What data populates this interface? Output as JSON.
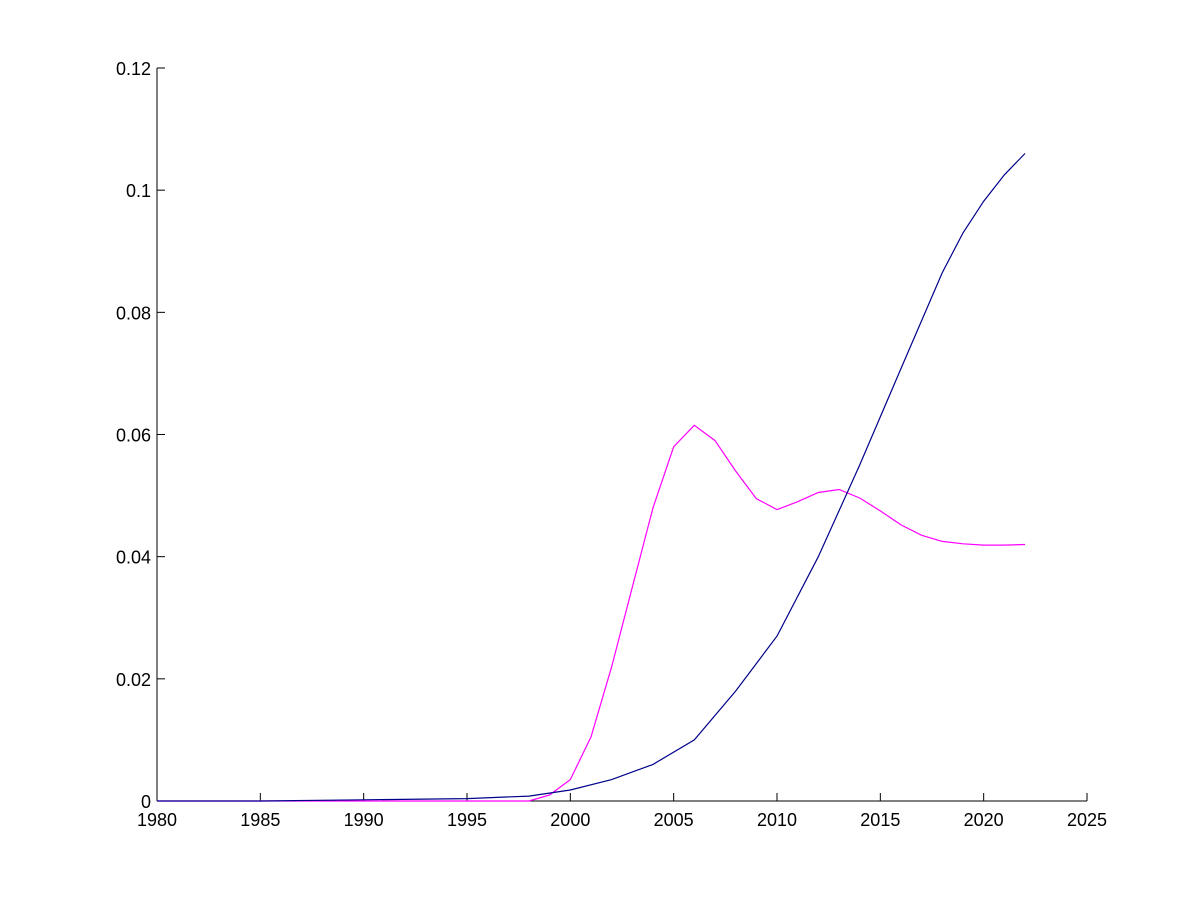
{
  "chart_data": {
    "type": "line",
    "title": "",
    "xlabel": "",
    "ylabel": "",
    "xlim": [
      1980,
      2025
    ],
    "ylim": [
      0,
      0.12
    ],
    "grid": false,
    "x_ticks": [
      1980,
      1985,
      1990,
      1995,
      2000,
      2005,
      2010,
      2015,
      2020,
      2025
    ],
    "y_ticks": [
      0,
      0.02,
      0.04,
      0.06,
      0.08,
      0.1,
      0.12
    ],
    "x_tick_labels": [
      "1980",
      "1985",
      "1990",
      "1995",
      "2000",
      "2005",
      "2010",
      "2015",
      "2020",
      "2025"
    ],
    "y_tick_labels": [
      "0",
      "0.02",
      "0.04",
      "0.06",
      "0.08",
      "0.1",
      "0.12"
    ],
    "series": [
      {
        "color": "#ff00ff",
        "x": [
          1980,
          1985,
          1990,
          1995,
          1998,
          1999,
          2000,
          2001,
          2002,
          2003,
          2004,
          2005,
          2006,
          2007,
          2008,
          2009,
          2010,
          2011,
          2012,
          2013,
          2014,
          2015,
          2016,
          2017,
          2018,
          2019,
          2020,
          2021,
          2022
        ],
        "y": [
          0,
          0,
          0,
          0,
          0,
          0.001,
          0.0035,
          0.0105,
          0.022,
          0.035,
          0.048,
          0.058,
          0.0615,
          0.059,
          0.054,
          0.0495,
          0.0477,
          0.049,
          0.0505,
          0.051,
          0.0496,
          0.0475,
          0.0452,
          0.0435,
          0.0425,
          0.0421,
          0.0419,
          0.0419,
          0.042
        ]
      },
      {
        "color": "#00008b",
        "x": [
          1980,
          1985,
          1990,
          1995,
          1998,
          2000,
          2002,
          2004,
          2006,
          2008,
          2010,
          2012,
          2014,
          2016,
          2018,
          2019,
          2020,
          2021,
          2022
        ],
        "y": [
          0,
          0,
          0.0002,
          0.0004,
          0.0008,
          0.0018,
          0.0035,
          0.006,
          0.01,
          0.018,
          0.027,
          0.04,
          0.055,
          0.0708,
          0.0865,
          0.093,
          0.0982,
          0.1025,
          0.106
        ]
      }
    ]
  }
}
